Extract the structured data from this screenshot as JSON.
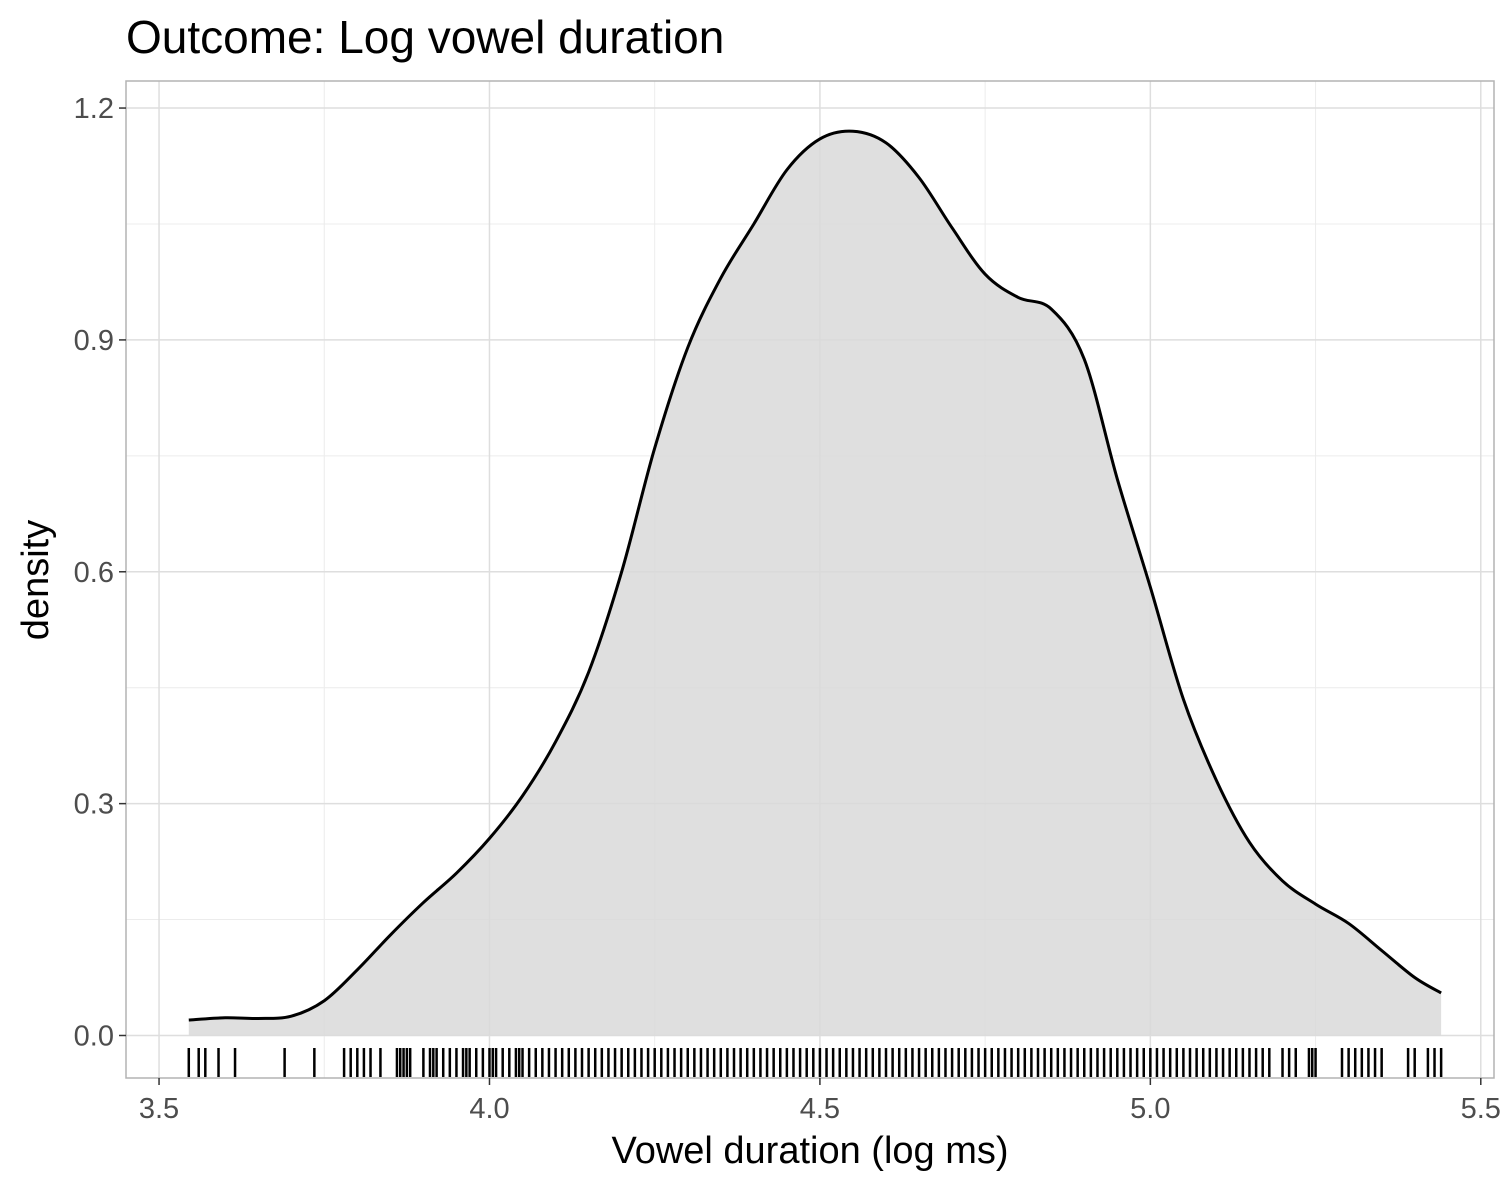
{
  "chart_data": {
    "type": "area",
    "title": "Outcome: Log vowel duration",
    "xlabel": "Vowel duration (log ms)",
    "ylabel": "density",
    "xlim": [
      3.45,
      5.52
    ],
    "ylim": [
      -0.055,
      1.235
    ],
    "x_ticks": [
      3.5,
      4.0,
      4.5,
      5.0,
      5.5
    ],
    "x_tick_labels": [
      "3.5",
      "4.0",
      "4.5",
      "5.0",
      "5.5"
    ],
    "y_ticks": [
      0.0,
      0.3,
      0.6,
      0.9,
      1.2
    ],
    "y_tick_labels": [
      "0.0",
      "0.3",
      "0.6",
      "0.9",
      "1.2"
    ],
    "grid": true,
    "series": [
      {
        "x": [
          3.545,
          3.6,
          3.65,
          3.7,
          3.75,
          3.8,
          3.85,
          3.9,
          3.95,
          4.0,
          4.05,
          4.1,
          4.15,
          4.2,
          4.25,
          4.3,
          4.35,
          4.4,
          4.45,
          4.5,
          4.55,
          4.6,
          4.65,
          4.7,
          4.75,
          4.8,
          4.85,
          4.9,
          4.95,
          5.0,
          5.05,
          5.1,
          5.15,
          5.2,
          5.25,
          5.3,
          5.35,
          5.4,
          5.44
        ],
        "y": [
          0.02,
          0.023,
          0.022,
          0.025,
          0.045,
          0.085,
          0.13,
          0.172,
          0.21,
          0.255,
          0.31,
          0.38,
          0.47,
          0.6,
          0.76,
          0.89,
          0.98,
          1.05,
          1.12,
          1.16,
          1.17,
          1.155,
          1.11,
          1.045,
          0.985,
          0.955,
          0.94,
          0.875,
          0.72,
          0.58,
          0.435,
          0.33,
          0.25,
          0.2,
          0.17,
          0.145,
          0.11,
          0.075,
          0.055
        ],
        "color": "#000000",
        "fill": "#d9d9d9"
      }
    ],
    "rug": [
      3.545,
      3.56,
      3.57,
      3.59,
      3.615,
      3.69,
      3.735,
      3.78,
      3.79,
      3.8,
      3.81,
      3.82,
      3.835,
      3.86,
      3.865,
      3.87,
      3.875,
      3.88,
      3.9,
      3.91,
      3.915,
      3.92,
      3.93,
      3.94,
      3.95,
      3.96,
      3.965,
      3.97,
      3.98,
      3.99,
      4.0,
      4.005,
      4.01,
      4.02,
      4.03,
      4.04,
      4.045,
      4.05,
      4.06,
      4.07,
      4.08,
      4.09,
      4.1,
      4.11,
      4.12,
      4.13,
      4.14,
      4.15,
      4.16,
      4.17,
      4.18,
      4.19,
      4.2,
      4.21,
      4.22,
      4.23,
      4.24,
      4.25,
      4.26,
      4.27,
      4.28,
      4.29,
      4.3,
      4.31,
      4.32,
      4.33,
      4.34,
      4.35,
      4.36,
      4.37,
      4.38,
      4.39,
      4.4,
      4.41,
      4.42,
      4.43,
      4.44,
      4.45,
      4.46,
      4.47,
      4.48,
      4.49,
      4.5,
      4.51,
      4.52,
      4.53,
      4.54,
      4.55,
      4.56,
      4.57,
      4.58,
      4.59,
      4.6,
      4.61,
      4.62,
      4.63,
      4.64,
      4.65,
      4.66,
      4.67,
      4.68,
      4.69,
      4.7,
      4.71,
      4.72,
      4.73,
      4.74,
      4.75,
      4.76,
      4.77,
      4.78,
      4.79,
      4.8,
      4.81,
      4.82,
      4.83,
      4.84,
      4.85,
      4.86,
      4.87,
      4.88,
      4.89,
      4.9,
      4.91,
      4.92,
      4.93,
      4.94,
      4.95,
      4.96,
      4.97,
      4.98,
      4.99,
      5.0,
      5.01,
      5.02,
      5.03,
      5.04,
      5.05,
      5.06,
      5.07,
      5.08,
      5.09,
      5.1,
      5.11,
      5.12,
      5.13,
      5.14,
      5.15,
      5.16,
      5.17,
      5.18,
      5.2,
      5.21,
      5.22,
      5.24,
      5.245,
      5.25,
      5.29,
      5.3,
      5.31,
      5.32,
      5.33,
      5.34,
      5.35,
      5.39,
      5.4,
      5.42,
      5.43,
      5.44
    ]
  }
}
